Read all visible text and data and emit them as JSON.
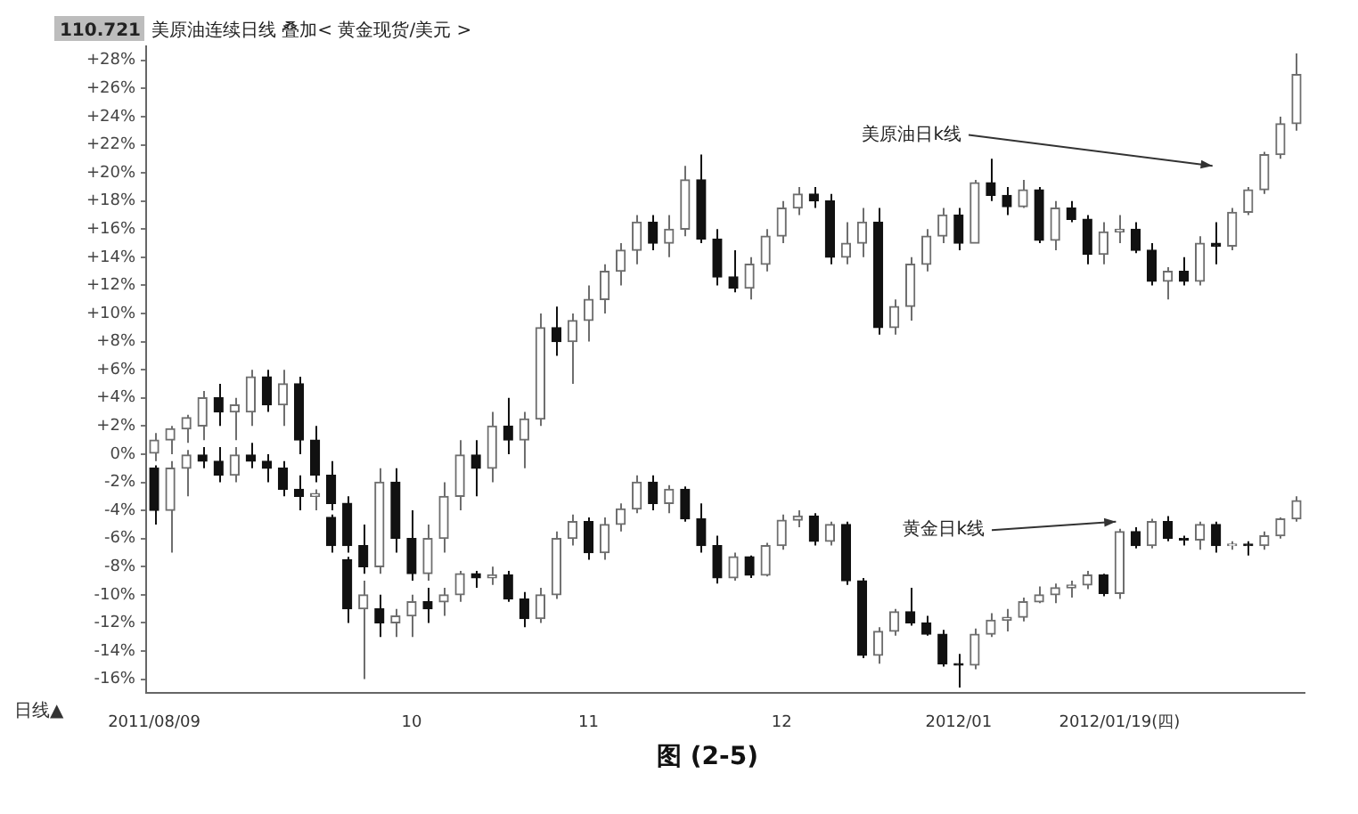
{
  "chart_data": {
    "type": "candlestick",
    "title": "美原油连续日线 叠加< 黄金现货/美元 >",
    "categories": [
      "2011/08/09",
      null,
      null,
      null,
      null,
      null,
      null,
      null,
      null,
      null,
      null,
      null,
      null,
      null,
      null,
      null,
      "10",
      null,
      null,
      null,
      null,
      null,
      null,
      null,
      null,
      null,
      null,
      "11",
      null,
      null,
      null,
      null,
      null,
      null,
      null,
      null,
      null,
      null,
      null,
      "12",
      null,
      null,
      null,
      null,
      null,
      null,
      null,
      null,
      null,
      null,
      "2012/01",
      null,
      null,
      null,
      null,
      null,
      null,
      null,
      null,
      null,
      "2012/01/19(四)",
      null,
      null,
      null,
      null,
      null,
      null,
      null,
      null,
      null,
      null,
      null
    ],
    "series": [
      {
        "name": "美原油日k线",
        "colors": [
          "#6e6e6e",
          "#6e6e6e",
          "#6e6e6e",
          "#6e6e6e",
          "#111111",
          "#6e6e6e",
          "#6e6e6e",
          "#111111",
          "#6e6e6e",
          "#111111",
          "#111111",
          "#111111",
          "#111111",
          "#111111",
          "#6e6e6e",
          "#111111",
          "#111111",
          "#6e6e6e",
          "#6e6e6e",
          "#6e6e6e",
          "#111111",
          "#6e6e6e",
          "#111111",
          "#6e6e6e",
          "#6e6e6e",
          "#111111",
          "#6e6e6e",
          "#6e6e6e",
          "#6e6e6e",
          "#6e6e6e",
          "#6e6e6e",
          "#111111",
          "#6e6e6e",
          "#6e6e6e",
          "#111111",
          "#111111",
          "#111111",
          "#6e6e6e",
          "#6e6e6e",
          "#6e6e6e",
          "#6e6e6e",
          "#111111",
          "#111111",
          "#6e6e6e",
          "#6e6e6e",
          "#111111",
          "#6e6e6e",
          "#6e6e6e",
          "#6e6e6e",
          "#6e6e6e",
          "#111111",
          "#6e6e6e",
          "#111111",
          "#111111",
          "#6e6e6e",
          "#111111",
          "#6e6e6e",
          "#111111",
          "#111111",
          "#6e6e6e",
          "#6e6e6e",
          "#111111",
          "#111111",
          "#6e6e6e",
          "#111111",
          "#6e6e6e",
          "#111111",
          "#6e6e6e",
          "#6e6e6e",
          "#6e6e6e",
          "#6e6e6e",
          "#6e6e6e"
        ],
        "ohlc": [
          [
            0,
            1.5,
            -0.5,
            1
          ],
          [
            1,
            2,
            0,
            1.8
          ],
          [
            1.8,
            2.8,
            0.8,
            2.6
          ],
          [
            2,
            4.5,
            1,
            4
          ],
          [
            4,
            5,
            2,
            3
          ],
          [
            3,
            4,
            1,
            3.5
          ],
          [
            3,
            6,
            2,
            5.5
          ],
          [
            5.5,
            6,
            3,
            3.5
          ],
          [
            3.5,
            6,
            2,
            5
          ],
          [
            5,
            5.5,
            0,
            1
          ],
          [
            1,
            2,
            -2,
            -1.5
          ],
          [
            -1.5,
            -0.5,
            -4,
            -3.5
          ],
          [
            -3.5,
            -3,
            -7,
            -6.5
          ],
          [
            -6.5,
            -5,
            -8.5,
            -8
          ],
          [
            -8,
            -1,
            -8.5,
            -2
          ],
          [
            -2,
            -1,
            -7,
            -6
          ],
          [
            -6,
            -4,
            -9,
            -8.5
          ],
          [
            -8.5,
            -5,
            -9,
            -6
          ],
          [
            -6,
            -2,
            -7,
            -3
          ],
          [
            -3,
            1,
            -4,
            0
          ],
          [
            0,
            1,
            -3,
            -1
          ],
          [
            -1,
            3,
            -2,
            2
          ],
          [
            2,
            4,
            0,
            1
          ],
          [
            1,
            3,
            -1,
            2.5
          ],
          [
            2.5,
            10,
            2,
            9
          ],
          [
            9,
            10.5,
            7,
            8
          ],
          [
            8,
            10,
            5,
            9.5
          ],
          [
            9.5,
            12,
            8,
            11
          ],
          [
            11,
            13.5,
            10,
            13
          ],
          [
            13,
            15,
            12,
            14.5
          ],
          [
            14.5,
            17,
            13.5,
            16.5
          ],
          [
            16.5,
            17,
            14.5,
            15
          ],
          [
            15,
            17,
            14,
            16
          ],
          [
            16,
            20.5,
            15.5,
            19.5
          ],
          [
            19.5,
            21.3,
            15,
            15.3
          ],
          [
            15.3,
            16,
            12,
            12.6
          ],
          [
            12.6,
            14.5,
            11.5,
            11.8
          ],
          [
            11.8,
            14,
            11,
            13.5
          ],
          [
            13.5,
            16,
            13,
            15.5
          ],
          [
            15.5,
            18,
            15,
            17.5
          ],
          [
            17.5,
            19,
            17,
            18.5
          ],
          [
            18.5,
            19,
            17.5,
            18
          ],
          [
            18,
            18.5,
            13.5,
            14
          ],
          [
            14,
            16.5,
            13.5,
            15
          ],
          [
            15,
            17.5,
            14,
            16.5
          ],
          [
            16.5,
            17.5,
            8.5,
            9
          ],
          [
            9,
            11,
            8.5,
            10.5
          ],
          [
            10.5,
            14,
            9.5,
            13.5
          ],
          [
            13.5,
            16,
            13,
            15.5
          ],
          [
            15.5,
            17.5,
            15,
            17
          ],
          [
            17,
            17.5,
            14.5,
            15
          ],
          [
            15,
            19.5,
            15,
            19.3
          ],
          [
            19.3,
            21,
            18,
            18.4
          ],
          [
            18.4,
            19,
            17,
            17.6
          ],
          [
            17.6,
            19.5,
            17.5,
            18.8
          ],
          [
            18.8,
            19,
            15,
            15.2
          ],
          [
            15.2,
            18,
            14.5,
            17.5
          ],
          [
            17.5,
            18,
            16.5,
            16.7
          ],
          [
            16.7,
            17,
            13.5,
            14.2
          ],
          [
            14.2,
            16.5,
            13.5,
            15.8
          ],
          [
            15.8,
            17,
            15,
            16
          ],
          [
            16,
            16.5,
            14.3,
            14.5
          ],
          [
            14.5,
            15,
            12,
            12.3
          ],
          [
            12.3,
            13.3,
            11,
            13
          ],
          [
            13,
            14,
            12,
            12.3
          ],
          [
            12.3,
            15.5,
            12,
            15
          ],
          [
            15,
            16.5,
            13.5,
            14.8
          ],
          [
            14.8,
            17.5,
            14.5,
            17.2
          ],
          [
            17.2,
            19,
            17,
            18.8
          ],
          [
            18.8,
            21.5,
            18.5,
            21.3
          ],
          [
            21.3,
            24,
            21,
            23.5
          ],
          [
            23.5,
            28.5,
            23,
            27
          ]
        ]
      },
      {
        "name": "黄金日k线",
        "colors": [
          "#111111",
          "#6e6e6e",
          "#6e6e6e",
          "#111111",
          "#111111",
          "#6e6e6e",
          "#111111",
          "#111111",
          "#111111",
          "#111111",
          "#6e6e6e",
          "#111111",
          "#111111",
          "#6e6e6e",
          "#111111",
          "#6e6e6e",
          "#6e6e6e",
          "#111111",
          "#6e6e6e",
          "#6e6e6e",
          "#111111",
          "#6e6e6e",
          "#111111",
          "#111111",
          "#6e6e6e",
          "#6e6e6e",
          "#6e6e6e",
          "#111111",
          "#6e6e6e",
          "#6e6e6e",
          "#6e6e6e",
          "#111111",
          "#6e6e6e",
          "#111111",
          "#111111",
          "#111111",
          "#6e6e6e",
          "#111111",
          "#6e6e6e",
          "#6e6e6e",
          "#6e6e6e",
          "#111111",
          "#6e6e6e",
          "#111111",
          "#111111",
          "#6e6e6e",
          "#6e6e6e",
          "#111111",
          "#111111",
          "#111111",
          "#111111",
          "#6e6e6e",
          "#6e6e6e",
          "#6e6e6e",
          "#6e6e6e",
          "#6e6e6e",
          "#6e6e6e",
          "#6e6e6e",
          "#6e6e6e",
          "#111111",
          "#6e6e6e",
          "#111111",
          "#6e6e6e",
          "#111111",
          "#111111",
          "#6e6e6e",
          "#111111",
          "#6e6e6e",
          "#111111",
          "#6e6e6e",
          "#6e6e6e",
          "#6e6e6e"
        ],
        "ohlc": [
          [
            -1,
            -0.8,
            -5,
            -4
          ],
          [
            -4,
            -0.5,
            -7,
            -1
          ],
          [
            -1,
            0.3,
            -3,
            0
          ],
          [
            0,
            0.5,
            -1,
            -0.5
          ],
          [
            -0.5,
            0.5,
            -2,
            -1.5
          ],
          [
            -1.5,
            0.5,
            -2,
            0
          ],
          [
            0,
            0.8,
            -1,
            -0.5
          ],
          [
            -0.5,
            0,
            -2,
            -1
          ],
          [
            -1,
            -0.5,
            -3,
            -2.5
          ],
          [
            -2.5,
            -1.5,
            -4,
            -3
          ],
          [
            -3,
            -2.5,
            -4,
            -2.8
          ],
          [
            -4.5,
            -4.3,
            -7,
            -6.5
          ],
          [
            -7.5,
            -7.3,
            -12,
            -11
          ],
          [
            -11,
            -9,
            -16,
            -10
          ],
          [
            -11,
            -10,
            -13,
            -12
          ],
          [
            -12,
            -11,
            -13,
            -11.5
          ],
          [
            -11.5,
            -10,
            -13,
            -10.5
          ],
          [
            -10.5,
            -9.5,
            -12,
            -11
          ],
          [
            -10.5,
            -9.5,
            -11.5,
            -10
          ],
          [
            -10,
            -8.3,
            -10.5,
            -8.5
          ],
          [
            -8.5,
            -8.3,
            -9.5,
            -8.8
          ],
          [
            -8.8,
            -8,
            -9.3,
            -8.6
          ],
          [
            -8.6,
            -8.3,
            -10.5,
            -10.3
          ],
          [
            -10.3,
            -9.8,
            -12.3,
            -11.7
          ],
          [
            -11.7,
            -9.5,
            -12,
            -10
          ],
          [
            -10,
            -5.5,
            -10.3,
            -6
          ],
          [
            -6,
            -4.3,
            -6.5,
            -4.8
          ],
          [
            -4.8,
            -4.5,
            -7.5,
            -7
          ],
          [
            -7,
            -4.5,
            -7.5,
            -5
          ],
          [
            -5,
            -3.5,
            -5.5,
            -3.9
          ],
          [
            -3.9,
            -1.5,
            -4.2,
            -2
          ],
          [
            -2,
            -1.5,
            -4,
            -3.5
          ],
          [
            -3.5,
            -2.2,
            -4.2,
            -2.5
          ],
          [
            -2.5,
            -2.3,
            -4.8,
            -4.6
          ],
          [
            -4.6,
            -3.5,
            -7,
            -6.5
          ],
          [
            -6.5,
            -5.8,
            -9.2,
            -8.8
          ],
          [
            -8.8,
            -7,
            -9,
            -7.3
          ],
          [
            -7.3,
            -7.2,
            -8.8,
            -8.6
          ],
          [
            -8.6,
            -6.3,
            -8.7,
            -6.5
          ],
          [
            -6.5,
            -4.3,
            -6.8,
            -4.7
          ],
          [
            -4.7,
            -4,
            -5.2,
            -4.4
          ],
          [
            -4.4,
            -4.2,
            -6.5,
            -6.2
          ],
          [
            -6.2,
            -4.8,
            -6.5,
            -5
          ],
          [
            -5,
            -4.8,
            -9.3,
            -9
          ],
          [
            -9,
            -8.8,
            -14.5,
            -14.3
          ],
          [
            -14.3,
            -12.3,
            -14.9,
            -12.6
          ],
          [
            -12.6,
            -11,
            -12.9,
            -11.2
          ],
          [
            -11.2,
            -9.5,
            -12.2,
            -12
          ],
          [
            -12,
            -11.5,
            -12.9,
            -12.8
          ],
          [
            -12.8,
            -12.5,
            -15.1,
            -14.9
          ],
          [
            -14.9,
            -14.2,
            -16.6,
            -15
          ],
          [
            -15,
            -12.4,
            -15.3,
            -12.8
          ],
          [
            -12.8,
            -11.3,
            -13,
            -11.8
          ],
          [
            -11.8,
            -11,
            -12.6,
            -11.6
          ],
          [
            -11.6,
            -10.2,
            -11.9,
            -10.5
          ],
          [
            -10.5,
            -9.4,
            -10.6,
            -10
          ],
          [
            -10,
            -9.2,
            -10.6,
            -9.5
          ],
          [
            -9.5,
            -9,
            -10.2,
            -9.3
          ],
          [
            -9.3,
            -8.3,
            -9.6,
            -8.6
          ],
          [
            -8.6,
            -8.5,
            -10.1,
            -9.9
          ],
          [
            -9.9,
            -5.3,
            -10.3,
            -5.5
          ],
          [
            -5.5,
            -5.2,
            -6.7,
            -6.5
          ],
          [
            -6.5,
            -4.6,
            -6.7,
            -4.8
          ],
          [
            -4.8,
            -4.4,
            -6.2,
            -6
          ],
          [
            -6,
            -5.8,
            -6.5,
            -6.1
          ],
          [
            -6.1,
            -4.8,
            -6.8,
            -5
          ],
          [
            -5,
            -4.8,
            -7,
            -6.5
          ],
          [
            -6.5,
            -6.2,
            -6.8,
            -6.4
          ],
          [
            -6.4,
            -6.2,
            -7.2,
            -6.5
          ],
          [
            -6.5,
            -5.5,
            -6.8,
            -5.8
          ],
          [
            -5.8,
            -4.5,
            -6,
            -4.6
          ],
          [
            -4.6,
            -3,
            -4.8,
            -3.3
          ]
        ]
      }
    ],
    "ylim": [
      -17,
      29
    ],
    "yticks": [
      {
        "value": 28,
        "label": "+28%"
      },
      {
        "value": 26,
        "label": "+26%"
      },
      {
        "value": 24,
        "label": "+24%"
      },
      {
        "value": 22,
        "label": "+22%"
      },
      {
        "value": 20,
        "label": "+20%"
      },
      {
        "value": 18,
        "label": "+18%"
      },
      {
        "value": 16,
        "label": "+16%"
      },
      {
        "value": 14,
        "label": "+14%"
      },
      {
        "value": 12,
        "label": "+12%"
      },
      {
        "value": 10,
        "label": "+10%"
      },
      {
        "value": 8,
        "label": "+8%"
      },
      {
        "value": 6,
        "label": "+6%"
      },
      {
        "value": 4,
        "label": "+4%"
      },
      {
        "value": 2,
        "label": "+2%"
      },
      {
        "value": 0,
        "label": "0%"
      },
      {
        "value": -2,
        "label": "-2%"
      },
      {
        "value": -4,
        "label": "-4%"
      },
      {
        "value": -6,
        "label": "-6%"
      },
      {
        "value": -8,
        "label": "-8%"
      },
      {
        "value": -10,
        "label": "-10%"
      },
      {
        "value": -12,
        "label": "-12%"
      },
      {
        "value": -14,
        "label": "-14%"
      },
      {
        "value": -16,
        "label": "-16%"
      }
    ],
    "annotations": [
      "110.721",
      "日线▲",
      "图 (2-5)"
    ]
  }
}
